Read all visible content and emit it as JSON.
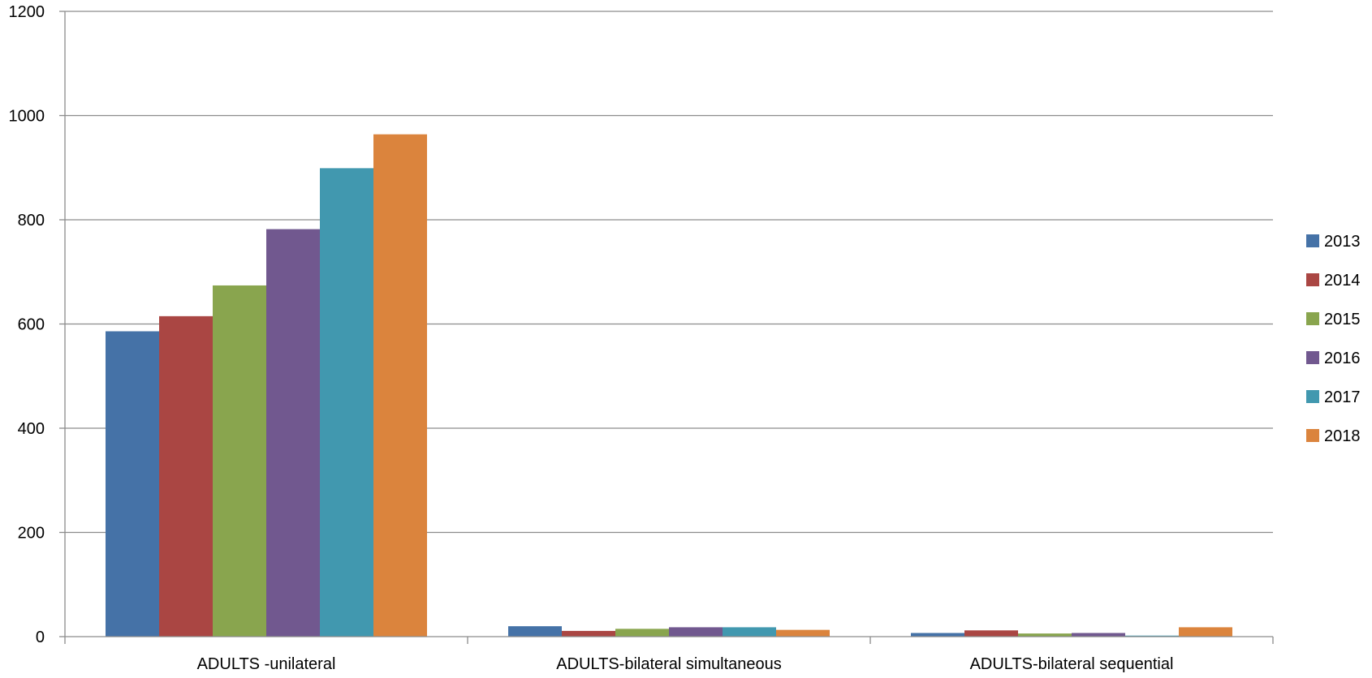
{
  "chart_data": {
    "type": "bar",
    "title": "",
    "xlabel": "",
    "ylabel": "",
    "categories": [
      "ADULTS -unilateral",
      "ADULTS-bilateral simultaneous",
      "ADULTS-bilateral sequential"
    ],
    "ylim": [
      0,
      1200
    ],
    "yticks": [
      0,
      200,
      400,
      600,
      800,
      1000,
      1200
    ],
    "grid": true,
    "legend_position": "right",
    "series": [
      {
        "name": "2013",
        "color": "#4572A7",
        "values": [
          586,
          20,
          7
        ]
      },
      {
        "name": "2014",
        "color": "#AA4643",
        "values": [
          615,
          11,
          12
        ]
      },
      {
        "name": "2015",
        "color": "#89A54E",
        "values": [
          674,
          15,
          6
        ]
      },
      {
        "name": "2016",
        "color": "#71588F",
        "values": [
          782,
          18,
          7
        ]
      },
      {
        "name": "2017",
        "color": "#4198AF",
        "values": [
          899,
          18,
          2
        ]
      },
      {
        "name": "2018",
        "color": "#DB843D",
        "values": [
          964,
          13,
          18
        ]
      }
    ]
  }
}
